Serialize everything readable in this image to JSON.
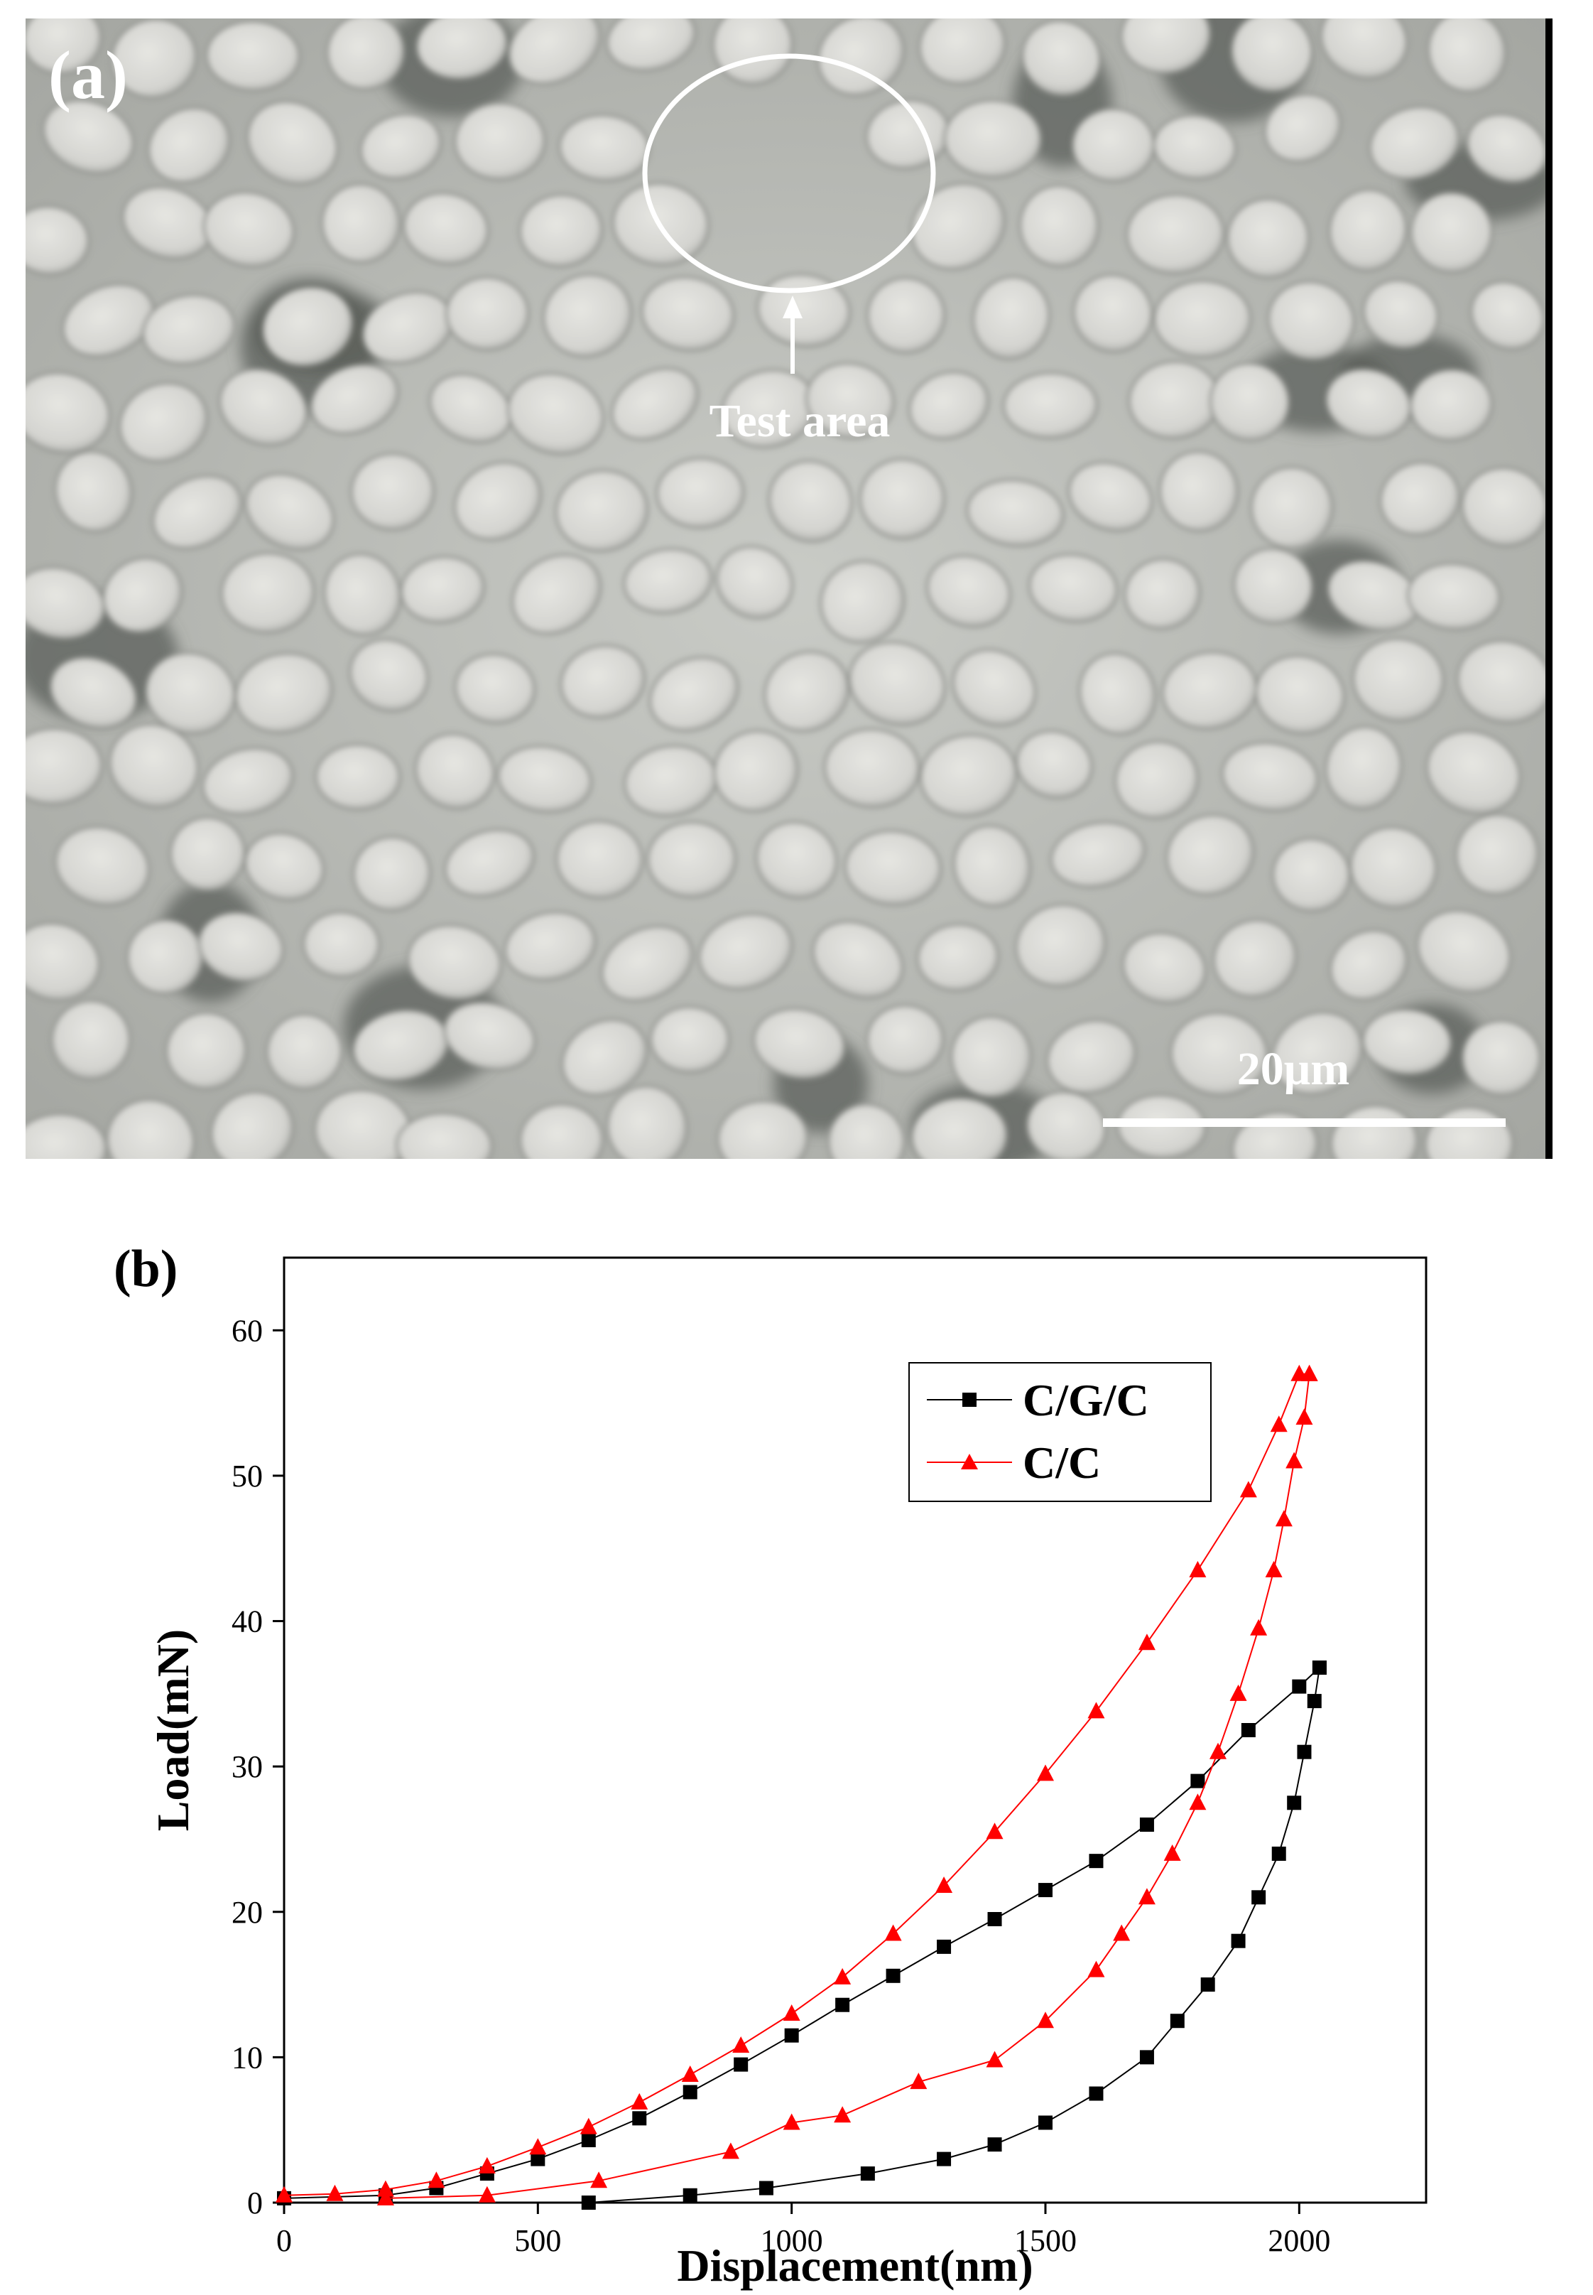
{
  "panel_a": {
    "label": "(a)",
    "annotation": "Test area",
    "scale_bar": "20μm"
  },
  "panel_b": {
    "label": "(b)"
  },
  "chart_data": {
    "type": "line",
    "title": "",
    "xlabel": "Displacement(nm)",
    "ylabel": "Load(mN)",
    "xlim": [
      0,
      2250
    ],
    "ylim": [
      0,
      65
    ],
    "xticks": [
      0,
      500,
      1000,
      1500,
      2000
    ],
    "yticks": [
      0,
      10,
      20,
      30,
      40,
      50,
      60
    ],
    "grid": false,
    "legend": "top-right",
    "series": [
      {
        "name": "C/G/C",
        "color": "#000000",
        "marker": "square",
        "loading": [
          [
            0,
            0.3
          ],
          [
            200,
            0.5
          ],
          [
            300,
            1
          ],
          [
            400,
            2
          ],
          [
            500,
            3
          ],
          [
            600,
            4.3
          ],
          [
            700,
            5.8
          ],
          [
            800,
            7.6
          ],
          [
            900,
            9.5
          ],
          [
            1000,
            11.5
          ],
          [
            1100,
            13.6
          ],
          [
            1200,
            15.6
          ],
          [
            1300,
            17.6
          ],
          [
            1400,
            19.5
          ],
          [
            1500,
            21.5
          ],
          [
            1600,
            23.5
          ],
          [
            1700,
            26
          ],
          [
            1800,
            29
          ],
          [
            1900,
            32.5
          ],
          [
            2000,
            35.5
          ],
          [
            2040,
            36.8
          ]
        ],
        "unloading": [
          [
            2040,
            36.8
          ],
          [
            2030,
            34.5
          ],
          [
            2010,
            31
          ],
          [
            1990,
            27.5
          ],
          [
            1960,
            24
          ],
          [
            1920,
            21
          ],
          [
            1880,
            18
          ],
          [
            1820,
            15
          ],
          [
            1760,
            12.5
          ],
          [
            1700,
            10
          ],
          [
            1600,
            7.5
          ],
          [
            1500,
            5.5
          ],
          [
            1400,
            4
          ],
          [
            1300,
            3
          ],
          [
            1150,
            2
          ],
          [
            950,
            1
          ],
          [
            800,
            0.5
          ],
          [
            600,
            0
          ]
        ]
      },
      {
        "name": "C/C",
        "color": "#ff0000",
        "marker": "triangle",
        "loading": [
          [
            0,
            0.5
          ],
          [
            100,
            0.6
          ],
          [
            200,
            0.9
          ],
          [
            300,
            1.5
          ],
          [
            400,
            2.5
          ],
          [
            500,
            3.8
          ],
          [
            600,
            5.2
          ],
          [
            700,
            6.9
          ],
          [
            800,
            8.8
          ],
          [
            900,
            10.8
          ],
          [
            1000,
            13
          ],
          [
            1100,
            15.5
          ],
          [
            1200,
            18.5
          ],
          [
            1300,
            21.8
          ],
          [
            1400,
            25.5
          ],
          [
            1500,
            29.5
          ],
          [
            1600,
            33.8
          ],
          [
            1700,
            38.5
          ],
          [
            1800,
            43.5
          ],
          [
            1900,
            49
          ],
          [
            1960,
            53.5
          ],
          [
            2000,
            57
          ],
          [
            2020,
            57
          ]
        ],
        "unloading": [
          [
            2020,
            57
          ],
          [
            2010,
            54
          ],
          [
            1990,
            51
          ],
          [
            1970,
            47
          ],
          [
            1950,
            43.5
          ],
          [
            1920,
            39.5
          ],
          [
            1880,
            35
          ],
          [
            1840,
            31
          ],
          [
            1800,
            27.5
          ],
          [
            1750,
            24
          ],
          [
            1700,
            21
          ],
          [
            1650,
            18.5
          ],
          [
            1600,
            16
          ],
          [
            1500,
            12.5
          ],
          [
            1400,
            9.8
          ],
          [
            1250,
            8.3
          ],
          [
            1100,
            6
          ],
          [
            1000,
            5.5
          ],
          [
            880,
            3.5
          ],
          [
            620,
            1.5
          ],
          [
            400,
            0.5
          ],
          [
            200,
            0.3
          ]
        ]
      }
    ]
  }
}
